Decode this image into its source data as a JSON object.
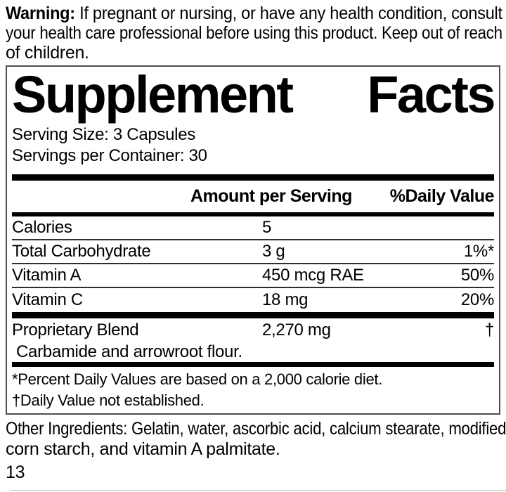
{
  "warning": {
    "bold_label": "Warning:",
    "line1_rest": "If pregnant or nursing, or have any health condition, consult",
    "line2": "your health care professional before using this product. Keep out of reach",
    "line3": "of children."
  },
  "panel": {
    "title_left": "Supplement",
    "title_right": "Facts",
    "serving_size": "Serving Size: 3 Capsules",
    "servings_per_container": "Servings per Container: 30",
    "columns": {
      "amount": "Amount per Serving",
      "daily_value": "%Daily Value"
    },
    "rows": [
      {
        "label": "Calories",
        "amount": "5",
        "dv": ""
      },
      {
        "label": "Total Carbohydrate",
        "amount": "3 g",
        "dv": "1%*"
      },
      {
        "label": "Vitamin A",
        "amount": "450 mcg RAE",
        "dv": "50%"
      },
      {
        "label": "Vitamin C",
        "amount": "18 mg",
        "dv": "20%"
      },
      {
        "label": "Proprietary Blend",
        "amount": "2,270 mg",
        "dv": "†"
      }
    ],
    "sub_ingredient": "Carbamide and arrowroot flour.",
    "footnote_percent": "*Percent Daily Values are based on a 2,000 calorie diet.",
    "footnote_dagger": "†Daily Value not established."
  },
  "other_ingredients": {
    "line1": "Other Ingredients: Gelatin, water, ascorbic acid, calcium stearate, modified",
    "line2": "corn starch, and vitamin A palmitate."
  },
  "page_number": "13",
  "colors": {
    "text": "#000000",
    "panel_border": "#4f4f4f",
    "bars": "#000000"
  }
}
